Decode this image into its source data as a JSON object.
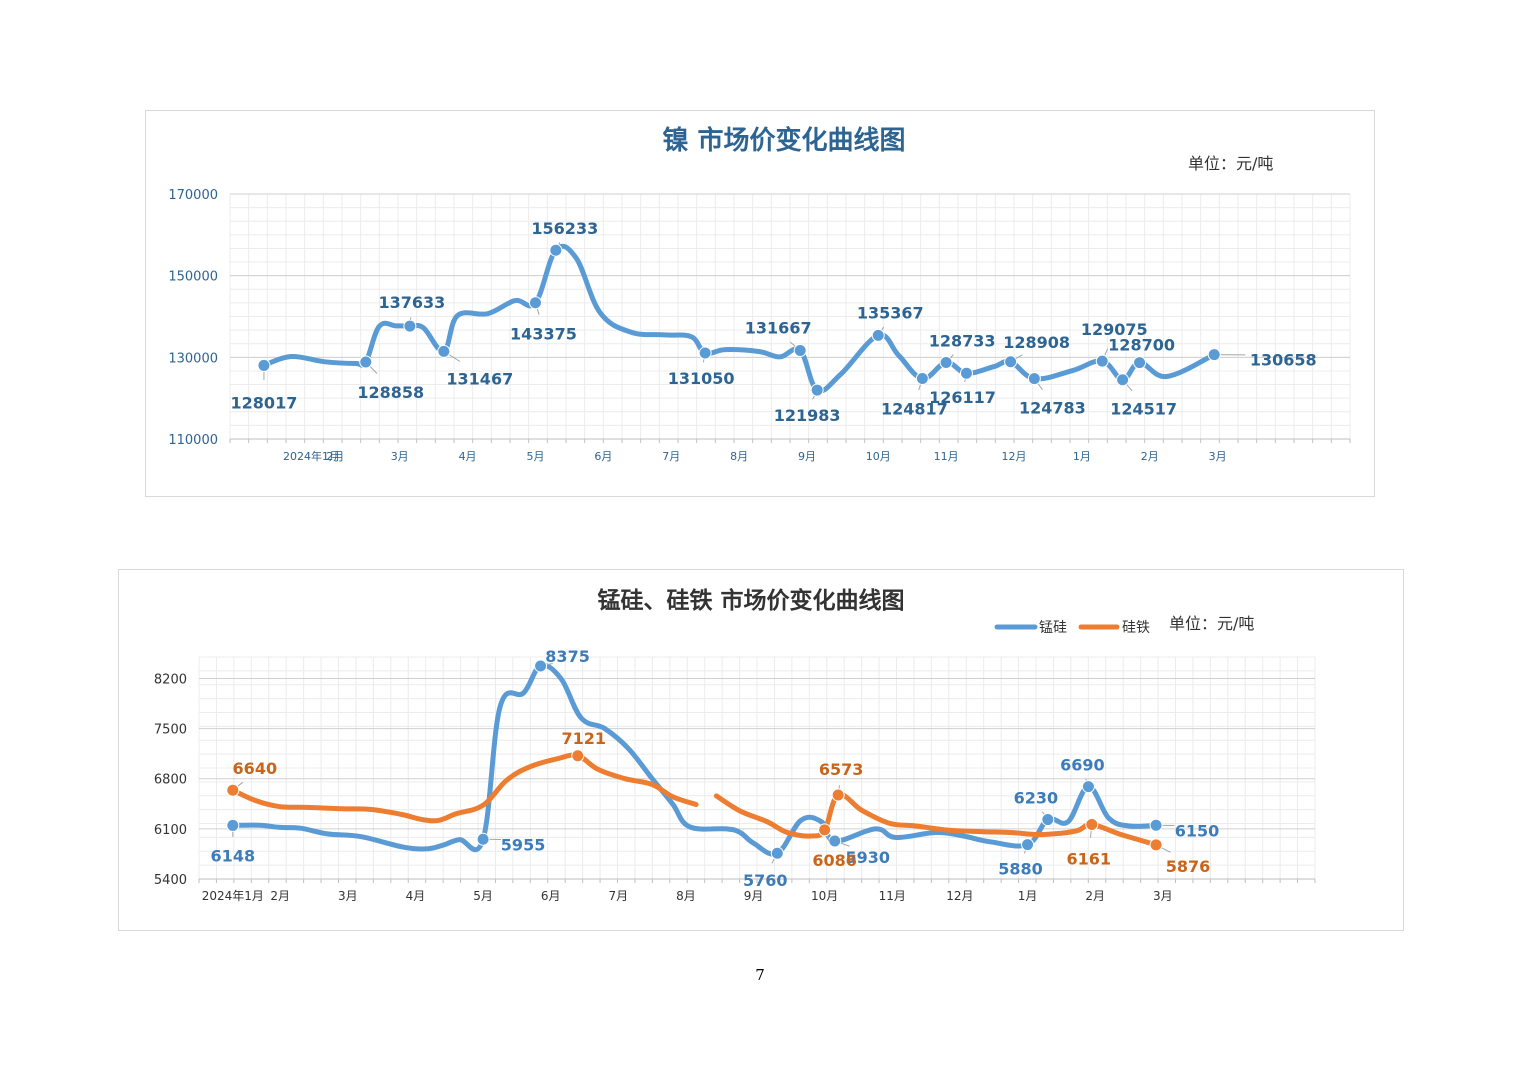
{
  "page_number": "7",
  "chart_data": [
    {
      "type": "line",
      "title": "镍  市场价变化曲线图",
      "unit_label": "单位：元/吨",
      "ylim": [
        110000,
        170000
      ],
      "yticks": [
        "170000",
        "150000",
        "130000",
        "110000"
      ],
      "ytick_values": [
        170000,
        150000,
        130000,
        110000
      ],
      "x_range": [
        -0.5,
        16
      ],
      "xticks": [
        {
          "label": "2024年1月",
          "x": 0.7
        },
        {
          "label": "2月",
          "x": 1.05
        },
        {
          "label": "3月",
          "x": 2
        },
        {
          "label": "4月",
          "x": 3
        },
        {
          "label": "5月",
          "x": 4
        },
        {
          "label": "6月",
          "x": 5
        },
        {
          "label": "7月",
          "x": 6
        },
        {
          "label": "8月",
          "x": 7
        },
        {
          "label": "9月",
          "x": 8
        },
        {
          "label": "10月",
          "x": 9.05
        },
        {
          "label": "11月",
          "x": 10.05
        },
        {
          "label": "12月",
          "x": 11.05
        },
        {
          "label": "1月",
          "x": 12.05
        },
        {
          "label": "2月",
          "x": 13.05
        },
        {
          "label": "3月",
          "x": 14.05
        }
      ],
      "series": [
        {
          "name": "镍",
          "color": "#5b9bd5",
          "line": [
            [
              0,
              128017
            ],
            [
              0.4,
              130200
            ],
            [
              0.9,
              128900
            ],
            [
              1.35,
              128500
            ],
            [
              1.5,
              128858
            ],
            [
              1.7,
              137600
            ],
            [
              1.95,
              137700
            ],
            [
              2.15,
              137633
            ],
            [
              2.35,
              137200
            ],
            [
              2.65,
              131467
            ],
            [
              2.85,
              140200
            ],
            [
              3.3,
              140700
            ],
            [
              3.7,
              143900
            ],
            [
              4,
              143375
            ],
            [
              4.3,
              156233
            ],
            [
              4.6,
              154300
            ],
            [
              4.95,
              141000
            ],
            [
              5.4,
              136200
            ],
            [
              5.9,
              135500
            ],
            [
              6.3,
              135000
            ],
            [
              6.5,
              131050
            ],
            [
              6.8,
              131900
            ],
            [
              7.3,
              131400
            ],
            [
              7.6,
              130100
            ],
            [
              7.9,
              131667
            ],
            [
              8.15,
              121983
            ],
            [
              8.5,
              125900
            ],
            [
              9.05,
              135367
            ],
            [
              9.35,
              130500
            ],
            [
              9.7,
              124817
            ],
            [
              10.05,
              128733
            ],
            [
              10.35,
              126117
            ],
            [
              10.75,
              127700
            ],
            [
              11,
              128908
            ],
            [
              11.35,
              124783
            ],
            [
              11.9,
              126700
            ],
            [
              12.35,
              129075
            ],
            [
              12.65,
              124517
            ],
            [
              12.9,
              128700
            ],
            [
              13.3,
              125300
            ],
            [
              14,
              130658
            ]
          ],
          "points": [
            {
              "x": 0,
              "y": 128017,
              "label": "128017",
              "dx": 0,
              "dy": 37
            },
            {
              "x": 1.5,
              "y": 128858,
              "label": "128858",
              "dx": 25,
              "dy": 30
            },
            {
              "x": 2.15,
              "y": 137633,
              "label": "137633",
              "dx": 2,
              "dy": -24
            },
            {
              "x": 2.65,
              "y": 131467,
              "label": "131467",
              "dx": 36,
              "dy": 27
            },
            {
              "x": 4,
              "y": 143375,
              "label": "143375",
              "dx": 8,
              "dy": 31
            },
            {
              "x": 4.3,
              "y": 156233,
              "label": "156233",
              "dx": 9,
              "dy": -22
            },
            {
              "x": 6.5,
              "y": 131050,
              "label": "131050",
              "dx": -4,
              "dy": 25
            },
            {
              "x": 7.9,
              "y": 131667,
              "label": "131667",
              "dx": -22,
              "dy": -23
            },
            {
              "x": 8.15,
              "y": 121983,
              "label": "121983",
              "dx": -10,
              "dy": 25
            },
            {
              "x": 9.05,
              "y": 135367,
              "label": "135367",
              "dx": 12,
              "dy": -23
            },
            {
              "x": 9.7,
              "y": 124817,
              "label": "124817",
              "dx": -8,
              "dy": 30
            },
            {
              "x": 10.05,
              "y": 128733,
              "label": "128733",
              "dx": 16,
              "dy": -22
            },
            {
              "x": 10.35,
              "y": 126117,
              "label": "126117",
              "dx": -4,
              "dy": 24
            },
            {
              "x": 11,
              "y": 128908,
              "label": "128908",
              "dx": 26,
              "dy": -20
            },
            {
              "x": 11.35,
              "y": 124783,
              "label": "124783",
              "dx": 18,
              "dy": 29
            },
            {
              "x": 12.35,
              "y": 129075,
              "label": "129075",
              "dx": 12,
              "dy": -32
            },
            {
              "x": 12.65,
              "y": 124517,
              "label": "124517",
              "dx": 21,
              "dy": 29
            },
            {
              "x": 12.9,
              "y": 128700,
              "label": "128700",
              "dx": 2,
              "dy": -18
            },
            {
              "x": 14,
              "y": 130658,
              "label": "130658",
              "dx": 69,
              "dy": 5
            }
          ]
        }
      ]
    },
    {
      "type": "line",
      "title": "锰硅、硅铁  市场价变化曲线图",
      "unit_label": "单位：元/吨",
      "legend": [
        "锰硅",
        "硅铁"
      ],
      "ylim": [
        5400,
        8500
      ],
      "yticks": [
        "8200",
        "7500",
        "6800",
        "6100",
        "5400"
      ],
      "ytick_values": [
        8200,
        7500,
        6800,
        6100,
        5400
      ],
      "x_range": [
        -0.5,
        16
      ],
      "xticks": [
        {
          "label": "2024年1月",
          "x": 0
        },
        {
          "label": "2月",
          "x": 0.7
        },
        {
          "label": "3月",
          "x": 1.7
        },
        {
          "label": "4月",
          "x": 2.7
        },
        {
          "label": "5月",
          "x": 3.7
        },
        {
          "label": "6月",
          "x": 4.7
        },
        {
          "label": "7月",
          "x": 5.7
        },
        {
          "label": "8月",
          "x": 6.7
        },
        {
          "label": "9月",
          "x": 7.7
        },
        {
          "label": "10月",
          "x": 8.75
        },
        {
          "label": "11月",
          "x": 9.75
        },
        {
          "label": "12月",
          "x": 10.75
        },
        {
          "label": "1月",
          "x": 11.75
        },
        {
          "label": "2月",
          "x": 12.75
        },
        {
          "label": "3月",
          "x": 13.75
        }
      ],
      "series": [
        {
          "name": "锰硅",
          "color": "#5b9bd5",
          "line": [
            [
              0,
              6148
            ],
            [
              0.4,
              6150
            ],
            [
              0.7,
              6120
            ],
            [
              1,
              6110
            ],
            [
              1.4,
              6030
            ],
            [
              1.9,
              5990
            ],
            [
              2.5,
              5850
            ],
            [
              2.85,
              5820
            ],
            [
              3.1,
              5870
            ],
            [
              3.35,
              5950
            ],
            [
              3.7,
              5955
            ],
            [
              3.95,
              7800
            ],
            [
              4.3,
              8000
            ],
            [
              4.55,
              8375
            ],
            [
              4.85,
              8200
            ],
            [
              5.15,
              7650
            ],
            [
              5.5,
              7500
            ],
            [
              5.85,
              7220
            ],
            [
              6.2,
              6800
            ],
            [
              6.5,
              6450
            ],
            [
              6.75,
              6130
            ],
            [
              7.3,
              6100
            ],
            [
              7.5,
              6050
            ],
            [
              7.7,
              5900
            ],
            [
              8.05,
              5760
            ],
            [
              8.4,
              6220
            ],
            [
              8.7,
              6200
            ],
            [
              8.9,
              5930
            ],
            [
              9.5,
              6100
            ],
            [
              9.8,
              5980
            ],
            [
              10.4,
              6050
            ],
            [
              10.8,
              6000
            ],
            [
              11.2,
              5920
            ],
            [
              11.75,
              5880
            ],
            [
              12.05,
              6230
            ],
            [
              12.35,
              6200
            ],
            [
              12.65,
              6690
            ],
            [
              12.95,
              6250
            ],
            [
              13.25,
              6140
            ],
            [
              13.65,
              6150
            ]
          ],
          "points": [
            {
              "x": 0,
              "y": 6148,
              "label": "6148",
              "dx": 0,
              "dy": 30
            },
            {
              "x": 3.7,
              "y": 5955,
              "label": "5955",
              "dx": 40,
              "dy": 5
            },
            {
              "x": 4.55,
              "y": 8375,
              "label": "8375",
              "dx": 27,
              "dy": -10
            },
            {
              "x": 8.05,
              "y": 5760,
              "label": "5760",
              "dx": -12,
              "dy": 27
            },
            {
              "x": 8.9,
              "y": 5930,
              "label": "5930",
              "dx": 33,
              "dy": 16
            },
            {
              "x": 11.75,
              "y": 5880,
              "label": "5880",
              "dx": -7,
              "dy": 24
            },
            {
              "x": 12.05,
              "y": 6230,
              "label": "6230",
              "dx": -12,
              "dy": -22
            },
            {
              "x": 12.65,
              "y": 6690,
              "label": "6690",
              "dx": -6,
              "dy": -22
            },
            {
              "x": 13.65,
              "y": 6150,
              "label": "6150",
              "dx": 41,
              "dy": 5
            }
          ]
        },
        {
          "name": "硅铁",
          "color": "#ed7d31",
          "segments": [
            [
              [
                0,
                6640
              ],
              [
                0.35,
                6490
              ],
              [
                0.7,
                6410
              ],
              [
                1.1,
                6400
              ],
              [
                1.6,
                6380
              ],
              [
                2.05,
                6370
              ],
              [
                2.5,
                6300
              ],
              [
                2.8,
                6230
              ],
              [
                3.05,
                6220
              ],
              [
                3.3,
                6310
              ],
              [
                3.7,
                6430
              ],
              [
                4.05,
                6780
              ],
              [
                4.4,
                6970
              ],
              [
                4.8,
                7080
              ],
              [
                5.1,
                7121
              ],
              [
                5.4,
                6930
              ],
              [
                5.8,
                6800
              ],
              [
                6.2,
                6720
              ],
              [
                6.5,
                6550
              ],
              [
                6.85,
                6440
              ]
            ],
            [
              [
                7.15,
                6560
              ],
              [
                7.5,
                6350
              ],
              [
                7.9,
                6200
              ],
              [
                8.2,
                6050
              ],
              [
                8.55,
                6000
              ],
              [
                8.75,
                6086
              ],
              [
                8.95,
                6573
              ],
              [
                9.3,
                6360
              ],
              [
                9.7,
                6180
              ],
              [
                10.1,
                6140
              ],
              [
                10.6,
                6080
              ],
              [
                11.1,
                6060
              ],
              [
                11.5,
                6050
              ],
              [
                11.9,
                6020
              ],
              [
                12.25,
                6040
              ],
              [
                12.5,
                6080
              ],
              [
                12.7,
                6161
              ],
              [
                13.1,
                6030
              ],
              [
                13.35,
                5960
              ],
              [
                13.65,
                5876
              ]
            ]
          ],
          "points": [
            {
              "x": 0,
              "y": 6640,
              "label": "6640",
              "dx": 22,
              "dy": -22
            },
            {
              "x": 5.1,
              "y": 7121,
              "label": "7121",
              "dx": 6,
              "dy": -18
            },
            {
              "x": 8.75,
              "y": 6086,
              "label": "6086",
              "dx": 10,
              "dy": 30
            },
            {
              "x": 8.95,
              "y": 6573,
              "label": "6573",
              "dx": 3,
              "dy": -26
            },
            {
              "x": 12.7,
              "y": 6161,
              "label": "6161",
              "dx": -3,
              "dy": 34
            },
            {
              "x": 13.65,
              "y": 5876,
              "label": "5876",
              "dx": 32,
              "dy": 21
            }
          ]
        }
      ]
    }
  ]
}
